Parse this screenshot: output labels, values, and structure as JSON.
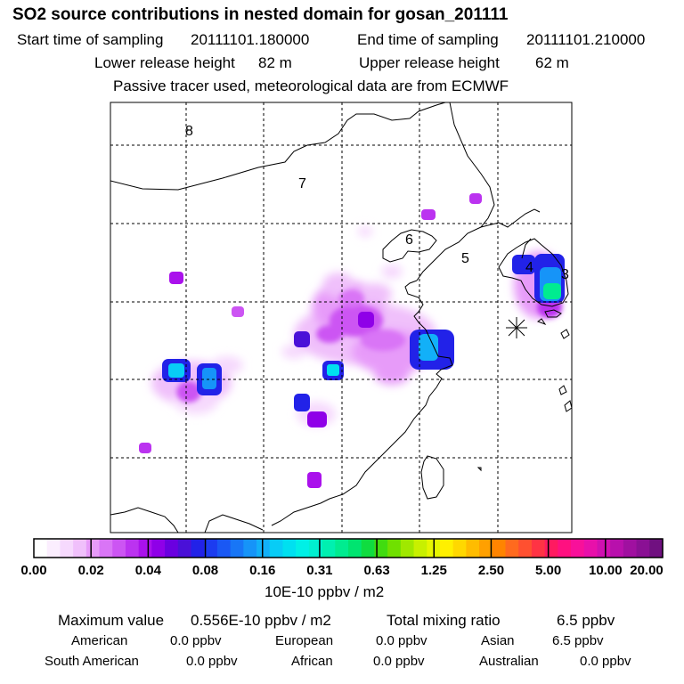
{
  "header": {
    "title": "SO2 source contributions in nested domain for gosan_201111",
    "start_label": "Start time of sampling",
    "start_value": "20111101.180000",
    "end_label": "End time of sampling",
    "end_value": "20111101.210000",
    "lower_label": "Lower release height",
    "lower_value": "82 m",
    "upper_label": "Upper release height",
    "upper_value": "62 m",
    "note": "Passive tracer used, meteorological data are from ECMWF"
  },
  "chart_data": {
    "type": "heatmap",
    "title": "SO2 source contributions in nested domain for gosan_201111",
    "units": "10E-10 ppbv / m2",
    "region_labels": [
      "8",
      "7",
      "6",
      "5",
      "4",
      "3"
    ],
    "receptor_marker": "star",
    "colorbar": {
      "tick_labels": [
        "0.00",
        "0.02",
        "0.04",
        "0.08",
        "0.16",
        "0.31",
        "0.63",
        "1.25",
        "2.50",
        "5.00",
        "10.00",
        "20.00"
      ],
      "colors": [
        "#ffffff",
        "#fbeefe",
        "#f6d9fd",
        "#f0c0fb",
        "#e79bf9",
        "#d975f6",
        "#cc55f3",
        "#bb33f0",
        "#aa11ec",
        "#8f00e8",
        "#6a00e0",
        "#4a10d8",
        "#2222e8",
        "#1c3cf0",
        "#1a58f4",
        "#1876f6",
        "#1694f8",
        "#12b0f8",
        "#08ccf6",
        "#00e0f0",
        "#00f0e6",
        "#00f0d0",
        "#00f0b0",
        "#00ec90",
        "#00e470",
        "#10dc40",
        "#40dc10",
        "#70e000",
        "#a0e800",
        "#c8f000",
        "#e6f600",
        "#fff000",
        "#ffd800",
        "#ffbc00",
        "#ffa000",
        "#ff8400",
        "#ff6a1e",
        "#ff5030",
        "#ff3344",
        "#ff1a60",
        "#ff1080",
        "#f8109a",
        "#e810aa",
        "#d010b0",
        "#b810ac",
        "#a010a0",
        "#8a1094",
        "#701080"
      ]
    },
    "max_value": 0.556,
    "max_value_text": "0.556E-10 ppbv / m2",
    "hotspots": [
      {
        "lon": 120.3,
        "lat": 30.8,
        "value": 0.14
      },
      {
        "lon": 126.9,
        "lat": 35.5,
        "value": 0.45
      },
      {
        "lon": 126.6,
        "lat": 37.2,
        "value": 0.06
      },
      {
        "lon": 96.7,
        "lat": 30.0,
        "value": 0.13
      },
      {
        "lon": 99.0,
        "lat": 29.8,
        "value": 0.1
      },
      {
        "lon": 111.7,
        "lat": 29.8,
        "value": 0.18
      },
      {
        "lon": 109.8,
        "lat": 27.5,
        "value": 0.06
      },
      {
        "lon": 107.5,
        "lat": 31.9,
        "value": 0.05
      },
      {
        "lon": 113.8,
        "lat": 33.8,
        "value": 0.04
      },
      {
        "lon": 112.0,
        "lat": 33.0,
        "value": 0.03
      }
    ]
  },
  "summary": {
    "max_label": "Maximum value",
    "max_value": "0.556E-10 ppbv / m2",
    "total_label": "Total mixing ratio",
    "total_value": "6.5 ppbv",
    "american_label": "American",
    "american_value": "0.0 ppbv",
    "european_label": "European",
    "european_value": "0.0 ppbv",
    "asian_label": "Asian",
    "asian_value": "6.5 ppbv",
    "south_american_label": "South American",
    "south_american_value": "0.0 ppbv",
    "african_label": "African",
    "african_value": "0.0 ppbv",
    "australian_label": "Australian",
    "australian_value": "0.0 ppbv"
  }
}
